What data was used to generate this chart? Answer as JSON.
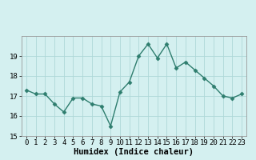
{
  "x": [
    0,
    1,
    2,
    3,
    4,
    5,
    6,
    7,
    8,
    9,
    10,
    11,
    12,
    13,
    14,
    15,
    16,
    17,
    18,
    19,
    20,
    21,
    22,
    23
  ],
  "y": [
    17.3,
    17.1,
    17.1,
    16.6,
    16.2,
    16.9,
    16.9,
    16.6,
    16.5,
    15.5,
    17.2,
    17.7,
    19.0,
    19.6,
    18.9,
    19.6,
    18.4,
    18.7,
    18.3,
    17.9,
    17.5,
    17.0,
    16.9,
    17.1
  ],
  "line_color": "#2e7d6e",
  "marker": "D",
  "marker_size": 2.5,
  "bg_color": "#d4f0f0",
  "grid_color": "#aed8d8",
  "xlabel": "Humidex (Indice chaleur)",
  "ylim": [
    15,
    20
  ],
  "xlim": [
    -0.5,
    23.5
  ],
  "yticks": [
    15,
    16,
    17,
    18,
    19
  ],
  "xticks": [
    0,
    1,
    2,
    3,
    4,
    5,
    6,
    7,
    8,
    9,
    10,
    11,
    12,
    13,
    14,
    15,
    16,
    17,
    18,
    19,
    20,
    21,
    22,
    23
  ],
  "tick_fontsize": 6.5,
  "xlabel_fontsize": 7.5,
  "linewidth": 1.0
}
